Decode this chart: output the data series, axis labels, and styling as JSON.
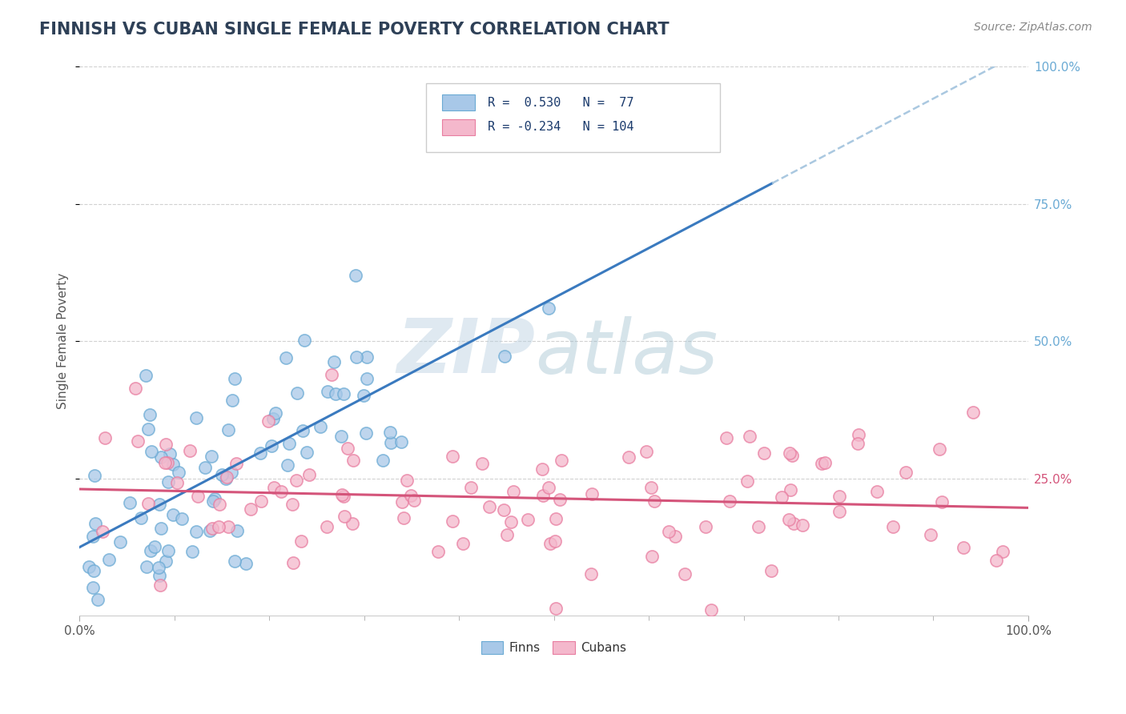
{
  "title": "FINNISH VS CUBAN SINGLE FEMALE POVERTY CORRELATION CHART",
  "source": "Source: ZipAtlas.com",
  "ylabel": "Single Female Poverty",
  "finn_color": "#a8c8e8",
  "finn_edge_color": "#6aaad4",
  "cuban_color": "#f4b8cc",
  "cuban_edge_color": "#e87da0",
  "finn_line_color": "#3a7abf",
  "cuban_line_color": "#d4547a",
  "dash_line_color": "#aac8e0",
  "background_color": "#ffffff",
  "grid_color": "#cccccc",
  "watermark_color": "#c8daea",
  "title_color": "#2e4057",
  "axis_tick_color": "#6aaad4",
  "right_label_color_finn": "#6aaad4",
  "right_label_color_cuban": "#d4547a",
  "finn_R": 0.53,
  "finn_N": 77,
  "cuban_R": -0.234,
  "cuban_N": 104,
  "title_fontsize": 15,
  "legend_text_color": "#1a3a6c"
}
